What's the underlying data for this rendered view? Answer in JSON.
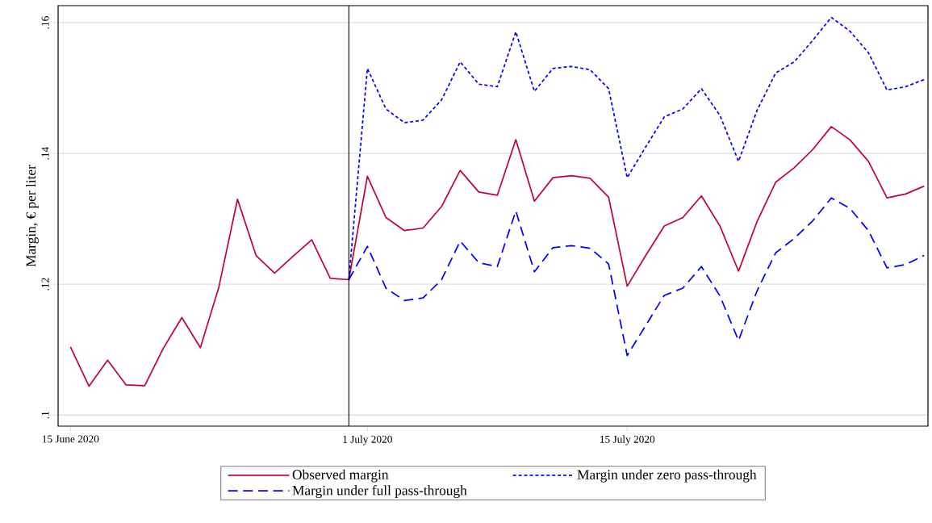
{
  "chart_data": {
    "type": "line",
    "ylabel": "Margin, € per liter",
    "x": [
      "2020-06-15",
      "2020-06-16",
      "2020-06-17",
      "2020-06-18",
      "2020-06-19",
      "2020-06-20",
      "2020-06-21",
      "2020-06-22",
      "2020-06-23",
      "2020-06-24",
      "2020-06-25",
      "2020-06-26",
      "2020-06-27",
      "2020-06-28",
      "2020-06-29",
      "2020-06-30",
      "2020-07-01",
      "2020-07-02",
      "2020-07-03",
      "2020-07-04",
      "2020-07-05",
      "2020-07-06",
      "2020-07-07",
      "2020-07-08",
      "2020-07-09",
      "2020-07-10",
      "2020-07-11",
      "2020-07-12",
      "2020-07-13",
      "2020-07-14",
      "2020-07-15",
      "2020-07-16",
      "2020-07-17",
      "2020-07-18",
      "2020-07-19",
      "2020-07-20",
      "2020-07-21",
      "2020-07-22",
      "2020-07-23",
      "2020-07-24",
      "2020-07-25",
      "2020-07-26",
      "2020-07-27",
      "2020-07-28",
      "2020-07-29",
      "2020-07-30",
      "2020-07-31"
    ],
    "series": [
      {
        "name": "Observed margin",
        "color": "#c10534",
        "line_style": "solid",
        "values": [
          0.1104,
          0.1044,
          0.1084,
          0.1046,
          0.1045,
          0.1102,
          0.1149,
          0.1103,
          0.1196,
          0.133,
          0.1244,
          0.1217,
          0.1243,
          0.1268,
          0.1209,
          0.1207,
          0.1365,
          0.1302,
          0.1282,
          0.1286,
          0.1319,
          0.1374,
          0.1341,
          0.1336,
          0.1421,
          0.1327,
          0.1363,
          0.1366,
          0.1362,
          0.1333,
          0.1197,
          0.1244,
          0.1289,
          0.1302,
          0.1335,
          0.1289,
          0.122,
          0.1296,
          0.1356,
          0.1378,
          0.1406,
          0.1441,
          0.1421,
          0.1388,
          0.1332,
          0.1338,
          0.135
        ]
      },
      {
        "name": "Margin under zero pass-through",
        "color": "#0000ff",
        "line_style": "dotted",
        "values": [
          null,
          null,
          null,
          null,
          null,
          null,
          null,
          null,
          null,
          null,
          null,
          null,
          null,
          null,
          null,
          0.1207,
          0.153,
          0.1468,
          0.1447,
          0.1451,
          0.1482,
          0.154,
          0.1506,
          0.1502,
          0.1586,
          0.1495,
          0.153,
          0.1533,
          0.1528,
          0.1499,
          0.1363,
          0.141,
          0.1456,
          0.1468,
          0.1499,
          0.1458,
          0.1388,
          0.1466,
          0.1523,
          0.154,
          0.1573,
          0.1608,
          0.1587,
          0.1554,
          0.1497,
          0.1502,
          0.1513
        ]
      },
      {
        "name": "Margin under full pass-through",
        "color": "#0000ff",
        "line_style": "dashed",
        "values": [
          null,
          null,
          null,
          null,
          null,
          null,
          null,
          null,
          null,
          null,
          null,
          null,
          null,
          null,
          null,
          0.1207,
          0.1258,
          0.1194,
          0.1175,
          0.1179,
          0.1207,
          0.1266,
          0.1233,
          0.1227,
          0.1312,
          0.1219,
          0.1256,
          0.1259,
          0.1255,
          0.1231,
          0.1091,
          0.1137,
          0.1183,
          0.1194,
          0.1227,
          0.1182,
          0.1114,
          0.119,
          0.1248,
          0.127,
          0.1297,
          0.1332,
          0.1316,
          0.1282,
          0.1225,
          0.123,
          0.1244
        ]
      }
    ],
    "xlim": [
      "2020-06-14T08:00",
      "2020-07-31T05:00"
    ],
    "xticks": [
      {
        "value": "2020-06-15",
        "label": "15 June 2020"
      },
      {
        "value": "2020-07-01",
        "label": "1 July 2020"
      },
      {
        "value": "2020-07-15",
        "label": "15 July 2020"
      }
    ],
    "ylim": [
      0.0983,
      0.1626
    ],
    "yticks": [
      {
        "value": 0.1,
        "label": ".1"
      },
      {
        "value": 0.12,
        "label": ".12"
      },
      {
        "value": 0.14,
        "label": ".14"
      },
      {
        "value": 0.16,
        "label": ".16"
      }
    ],
    "ref_lines": [
      {
        "axis": "x",
        "value": "2020-06-30",
        "color": "#000000"
      }
    ],
    "grid": "y",
    "legend": "bottom"
  }
}
